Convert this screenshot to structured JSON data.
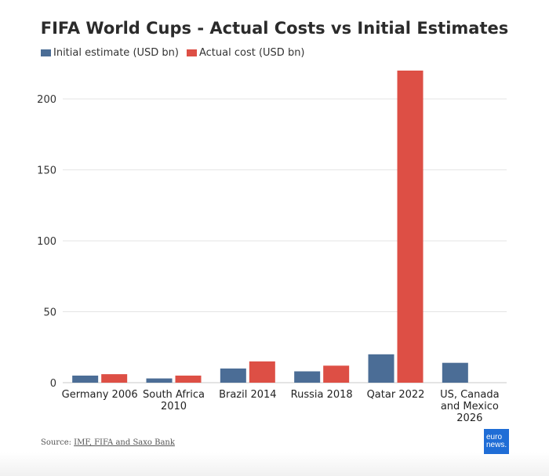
{
  "chart_data": {
    "type": "bar",
    "title": "FIFA World Cups - Actual Costs vs Initial Estimates",
    "categories": [
      "Germany 2006",
      "South Africa 2010",
      "Brazil 2014",
      "Russia 2018",
      "Qatar 2022",
      "US, Canada and Mexico 2026"
    ],
    "category_lines": [
      [
        "Germany 2006"
      ],
      [
        "South Africa",
        "2010"
      ],
      [
        "Brazil 2014"
      ],
      [
        "Russia 2018"
      ],
      [
        "Qatar 2022"
      ],
      [
        "US, Canada",
        "and Mexico",
        "2026"
      ]
    ],
    "series": [
      {
        "name": "Initial estimate (USD bn)",
        "color": "#4b6d96",
        "values": [
          5,
          3,
          10,
          8,
          20,
          14
        ]
      },
      {
        "name": "Actual cost (USD bn)",
        "color": "#dd4f45",
        "values": [
          6,
          5,
          15,
          12,
          220,
          null
        ]
      }
    ],
    "y_ticks": [
      0,
      50,
      100,
      150,
      200
    ],
    "ylim": [
      0,
      220
    ],
    "xlabel": "",
    "ylabel": "",
    "grid": true,
    "legend_position": "top-left"
  },
  "source": {
    "prefix": "Source: ",
    "links": "IMF, FIFA and Saxo Bank"
  },
  "logo": {
    "line1": "euro",
    "line2": "news."
  }
}
